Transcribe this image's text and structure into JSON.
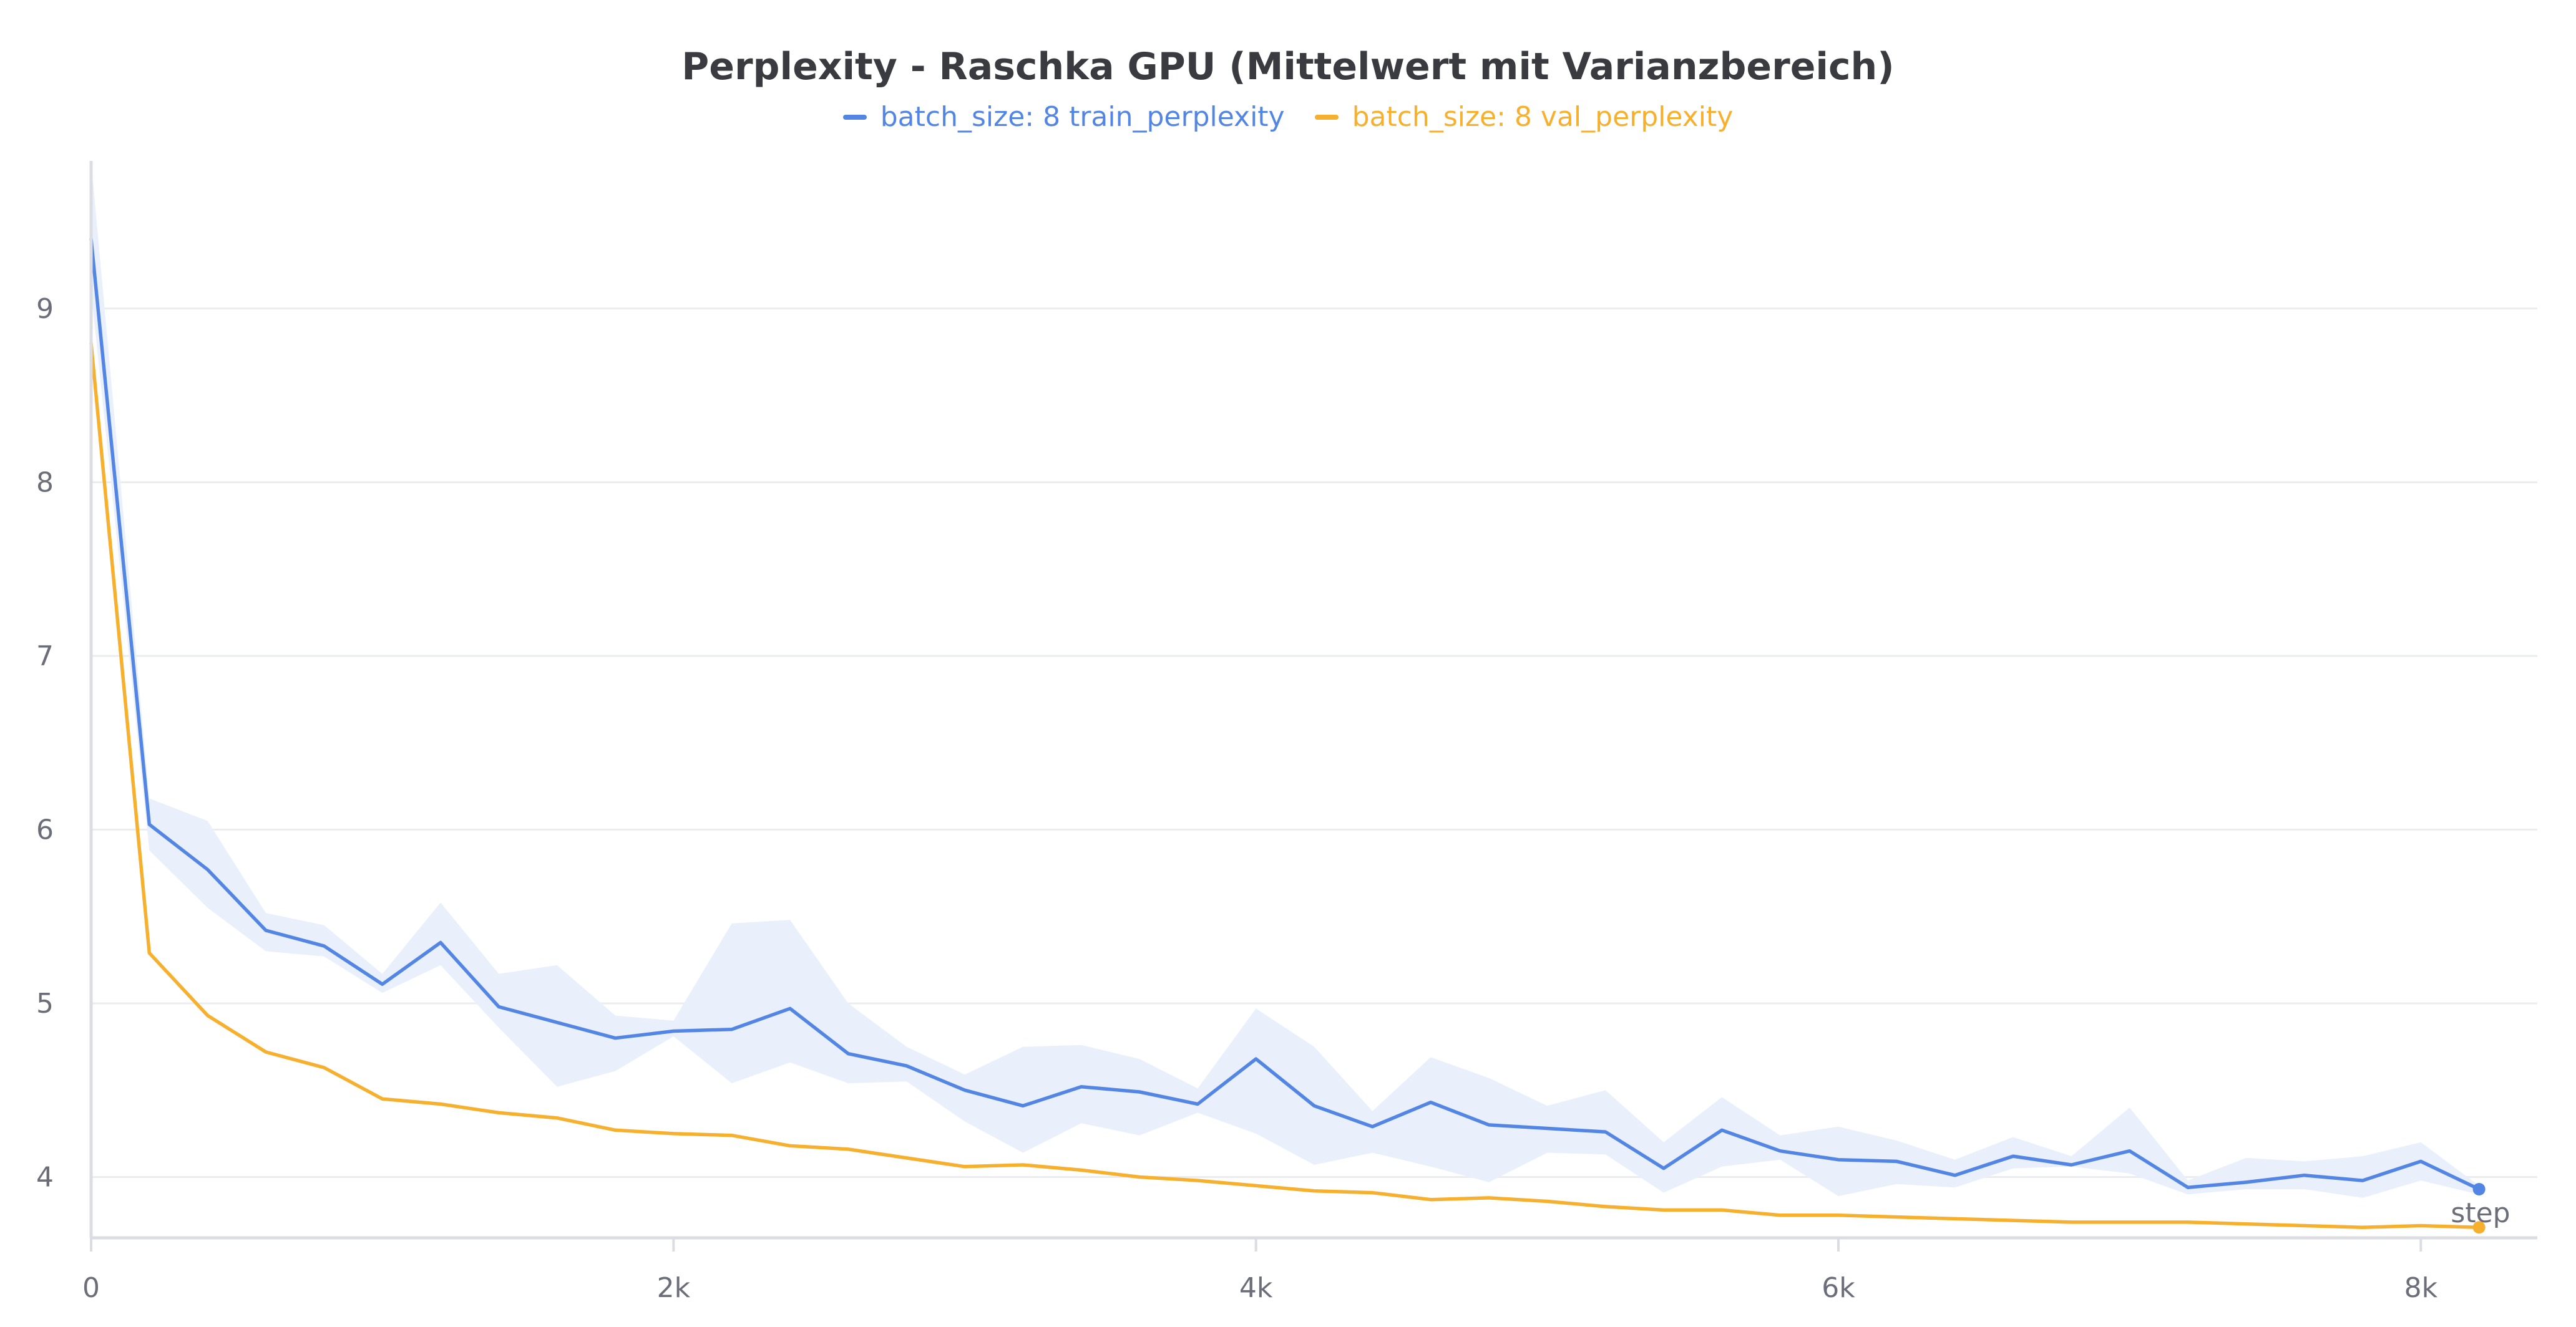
{
  "chart_data": {
    "type": "line",
    "title": "Perplexity - Raschka GPU (Mittelwert mit Varianzbereich)",
    "xlabel": "step",
    "ylabel": "",
    "xlim": [
      0,
      8400
    ],
    "ylim": [
      3.65,
      9.85
    ],
    "x_ticks": [
      {
        "value": 0,
        "label": "0"
      },
      {
        "value": 2000,
        "label": "2k"
      },
      {
        "value": 4000,
        "label": "4k"
      },
      {
        "value": 6000,
        "label": "6k"
      },
      {
        "value": 8000,
        "label": "8k"
      }
    ],
    "y_ticks": [
      {
        "value": 4,
        "label": "4"
      },
      {
        "value": 5,
        "label": "5"
      },
      {
        "value": 6,
        "label": "6"
      },
      {
        "value": 7,
        "label": "7"
      },
      {
        "value": 8,
        "label": "8"
      },
      {
        "value": 9,
        "label": "9"
      }
    ],
    "grid": true,
    "legend_position": "top-center",
    "series": [
      {
        "name": "batch_size: 8 train_perplexity",
        "color": "#5386e4",
        "band_color": "#e9f0fb",
        "x": [
          0,
          200,
          400,
          600,
          800,
          1000,
          1200,
          1400,
          1600,
          1800,
          2000,
          2200,
          2400,
          2600,
          2800,
          3000,
          3200,
          3400,
          3600,
          3800,
          4000,
          4200,
          4400,
          4600,
          4800,
          5000,
          5200,
          5400,
          5600,
          5800,
          6000,
          6200,
          6400,
          6600,
          6800,
          7000,
          7200,
          7400,
          7600,
          7800,
          8000,
          8200
        ],
        "values": [
          9.4,
          6.03,
          5.77,
          5.42,
          5.33,
          5.11,
          5.35,
          4.98,
          4.89,
          4.8,
          4.84,
          4.85,
          4.97,
          4.71,
          4.64,
          4.5,
          4.41,
          4.52,
          4.49,
          4.42,
          4.68,
          4.41,
          4.29,
          4.43,
          4.3,
          4.28,
          4.26,
          4.05,
          4.27,
          4.15,
          4.1,
          4.09,
          4.01,
          4.12,
          4.07,
          4.15,
          3.94,
          3.97,
          4.01,
          3.98,
          4.09,
          3.93
        ],
        "upper": [
          9.85,
          6.18,
          6.05,
          5.52,
          5.45,
          5.17,
          5.58,
          5.17,
          5.22,
          4.93,
          4.9,
          5.46,
          5.48,
          5.0,
          4.75,
          4.59,
          4.75,
          4.76,
          4.68,
          4.51,
          4.97,
          4.75,
          4.38,
          4.69,
          4.57,
          4.41,
          4.5,
          4.2,
          4.46,
          4.24,
          4.29,
          4.21,
          4.1,
          4.23,
          4.12,
          4.4,
          3.98,
          4.11,
          4.09,
          4.12,
          4.2,
          3.95
        ],
        "lower": [
          9.1,
          5.88,
          5.55,
          5.3,
          5.27,
          5.06,
          5.22,
          4.86,
          4.52,
          4.61,
          4.81,
          4.54,
          4.66,
          4.54,
          4.55,
          4.32,
          4.14,
          4.31,
          4.24,
          4.37,
          4.25,
          4.07,
          4.14,
          4.06,
          3.97,
          4.14,
          4.13,
          3.91,
          4.06,
          4.1,
          3.89,
          3.96,
          3.94,
          4.05,
          4.06,
          4.02,
          3.9,
          3.93,
          3.93,
          3.88,
          3.98,
          3.9
        ]
      },
      {
        "name": "batch_size: 8 val_perplexity",
        "color": "#f7b02e",
        "x": [
          0,
          200,
          400,
          600,
          800,
          1000,
          1200,
          1400,
          1600,
          1800,
          2000,
          2200,
          2400,
          2600,
          2800,
          3000,
          3200,
          3400,
          3600,
          3800,
          4000,
          4200,
          4400,
          4600,
          4800,
          5000,
          5200,
          5400,
          5600,
          5800,
          6000,
          6200,
          6400,
          6600,
          6800,
          7000,
          7200,
          7400,
          7600,
          7800,
          8000,
          8200
        ],
        "values": [
          8.8,
          5.29,
          4.93,
          4.72,
          4.63,
          4.45,
          4.42,
          4.37,
          4.34,
          4.27,
          4.25,
          4.24,
          4.18,
          4.16,
          4.11,
          4.06,
          4.07,
          4.04,
          4.0,
          3.98,
          3.95,
          3.92,
          3.91,
          3.87,
          3.88,
          3.86,
          3.83,
          3.81,
          3.81,
          3.78,
          3.78,
          3.77,
          3.76,
          3.75,
          3.74,
          3.74,
          3.74,
          3.73,
          3.72,
          3.71,
          3.72,
          3.71
        ]
      }
    ]
  }
}
